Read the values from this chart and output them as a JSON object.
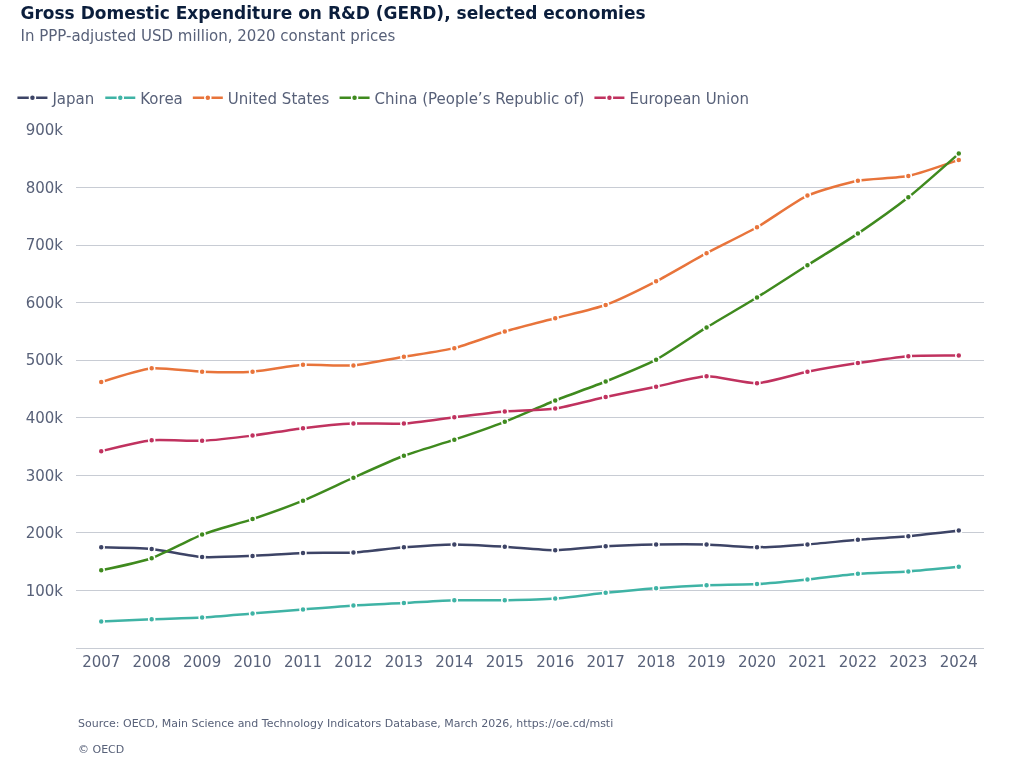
{
  "chart_data": {
    "type": "line",
    "title": "Gross Domestic Expenditure on R&D (GERD), selected economies",
    "subtitle": "In PPP-adjusted USD million, 2020 constant prices",
    "categories": [
      "2007",
      "2008",
      "2009",
      "2010",
      "2011",
      "2012",
      "2013",
      "2014",
      "2015",
      "2016",
      "2017",
      "2018",
      "2019",
      "2020",
      "2021",
      "2022",
      "2023",
      "2024"
    ],
    "series": [
      {
        "name": "Japan",
        "color": "#3d4466",
        "values": [
          175000,
          172000,
          158000,
          160000,
          165000,
          166000,
          175000,
          180000,
          176000,
          170000,
          177000,
          180000,
          180000,
          175000,
          180000,
          188000,
          194000,
          204000
        ]
      },
      {
        "name": "Korea",
        "color": "#3fb3a5",
        "values": [
          46000,
          50000,
          53000,
          60000,
          67000,
          74000,
          78000,
          83000,
          83000,
          86000,
          96000,
          104000,
          109000,
          111000,
          119000,
          129000,
          133000,
          141000
        ]
      },
      {
        "name": "United States",
        "color": "#e8743b",
        "values": [
          462000,
          486000,
          480000,
          480000,
          492000,
          491000,
          506000,
          521000,
          550000,
          573000,
          596000,
          637000,
          686000,
          731000,
          786000,
          812000,
          820000,
          848000
        ]
      },
      {
        "name": "China (People’s Republic of)",
        "color": "#3f8a1e",
        "values": [
          135000,
          156000,
          197000,
          224000,
          256000,
          296000,
          334000,
          362000,
          393000,
          430000,
          463000,
          501000,
          557000,
          609000,
          665000,
          720000,
          783000,
          859000
        ]
      },
      {
        "name": "European Union",
        "color": "#c0325f",
        "values": [
          342000,
          361000,
          360000,
          369000,
          382000,
          390000,
          390000,
          401000,
          411000,
          416000,
          436000,
          454000,
          472000,
          460000,
          480000,
          495000,
          507000,
          508000
        ]
      }
    ],
    "ylim": [
      0,
      900000
    ],
    "yticks": [
      {
        "value": 100000,
        "label": "100k"
      },
      {
        "value": 200000,
        "label": "200k"
      },
      {
        "value": 300000,
        "label": "300k"
      },
      {
        "value": 400000,
        "label": "400k"
      },
      {
        "value": 500000,
        "label": "500k"
      },
      {
        "value": 600000,
        "label": "600k"
      },
      {
        "value": 700000,
        "label": "700k"
      },
      {
        "value": 800000,
        "label": "800k"
      },
      {
        "value": 900000,
        "label": "900k"
      }
    ],
    "grid": "y",
    "legend": "top left",
    "marker": "circle",
    "line_style": "solid",
    "annotations": [
      "Source: OECD, Main Science and Technology Indicators Database, March 2026, https://oe.cd/msti",
      "© OECD"
    ]
  }
}
